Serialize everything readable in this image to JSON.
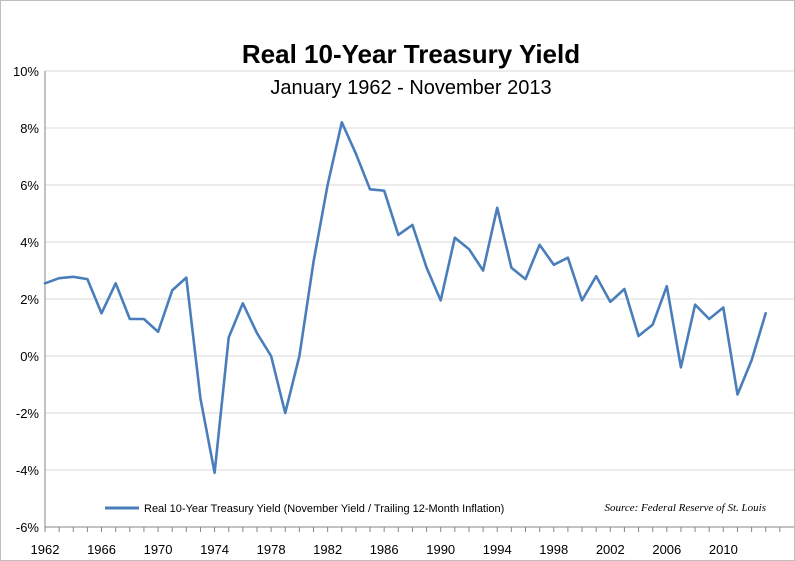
{
  "chart_data": {
    "type": "line",
    "title": "Real 10-Year Treasury Yield",
    "subtitle": "January 1962 - November 2013",
    "source": "Source: Federal Reserve of St. Louis",
    "xlabel": "",
    "ylabel": "",
    "xlim": [
      1962,
      2013
    ],
    "ylim": [
      -6,
      10
    ],
    "x_ticks": [
      1962,
      1966,
      1970,
      1974,
      1978,
      1982,
      1986,
      1990,
      1994,
      1998,
      2002,
      2006,
      2010
    ],
    "y_ticks": [
      -6,
      -4,
      -2,
      0,
      2,
      4,
      6,
      8,
      10
    ],
    "y_tick_labels": [
      "-6%",
      "-4%",
      "-2%",
      "0%",
      "2%",
      "4%",
      "6%",
      "8%",
      "10%"
    ],
    "grid": "horizontal",
    "legend_position": "bottom-left",
    "series": [
      {
        "name": "Real 10-Year Treasury Yield (November Yield / Trailing 12-Month Inflation)",
        "color": "#4a7ebb",
        "x": [
          1962,
          1963,
          1964,
          1965,
          1966,
          1967,
          1968,
          1969,
          1970,
          1971,
          1972,
          1973,
          1974,
          1975,
          1976,
          1977,
          1978,
          1979,
          1980,
          1981,
          1982,
          1983,
          1984,
          1985,
          1986,
          1987,
          1988,
          1989,
          1990,
          1991,
          1992,
          1993,
          1994,
          1995,
          1996,
          1997,
          1998,
          1999,
          2000,
          2001,
          2002,
          2003,
          2004,
          2005,
          2006,
          2007,
          2008,
          2009,
          2010,
          2011,
          2012,
          2013
        ],
        "values": [
          2.55,
          2.73,
          2.78,
          2.7,
          1.5,
          2.55,
          1.3,
          1.3,
          0.85,
          2.3,
          2.75,
          -1.5,
          -4.1,
          0.65,
          1.85,
          0.8,
          0.0,
          -2.0,
          0.0,
          3.3,
          6.0,
          8.2,
          7.1,
          5.85,
          5.8,
          4.25,
          4.6,
          3.1,
          1.95,
          4.15,
          3.75,
          3.0,
          5.2,
          3.1,
          2.7,
          3.9,
          3.2,
          3.45,
          1.95,
          2.8,
          1.9,
          2.35,
          0.7,
          1.1,
          2.45,
          -0.4,
          1.8,
          1.3,
          1.7,
          -1.35,
          -0.15,
          1.5
        ]
      }
    ]
  }
}
